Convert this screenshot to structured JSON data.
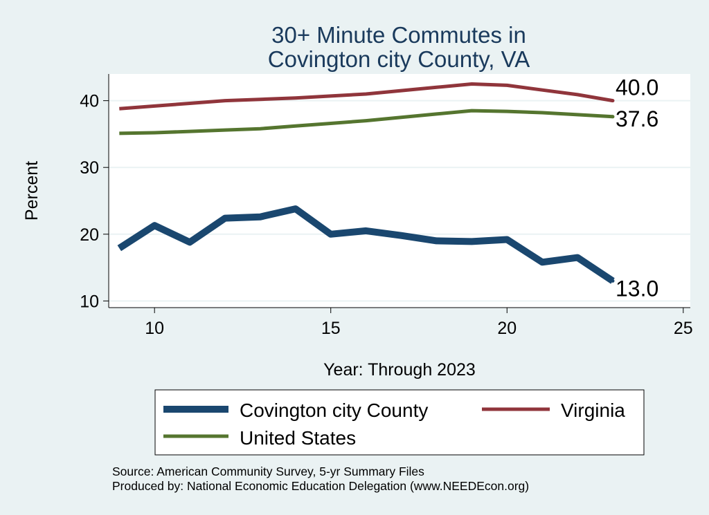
{
  "chart_data": {
    "type": "line",
    "title": [
      "30+ Minute Commutes in",
      "Covington city County, VA"
    ],
    "xlabel": "Year: Through 2023",
    "ylabel": "Percent",
    "xlim": [
      8.7,
      25.2
    ],
    "ylim": [
      9,
      44
    ],
    "xticks": [
      10,
      15,
      20,
      25
    ],
    "yticks": [
      10,
      20,
      30,
      40
    ],
    "grid": true,
    "x": [
      9,
      10,
      11,
      12,
      13,
      14,
      15,
      16,
      17,
      18,
      19,
      20,
      21,
      22,
      23
    ],
    "series": [
      {
        "name": "Covington city County",
        "color": "#1a476f",
        "values": [
          17.9,
          21.3,
          18.8,
          22.4,
          22.6,
          23.8,
          20.0,
          20.5,
          19.8,
          19.0,
          18.9,
          19.2,
          15.8,
          16.5,
          13.0
        ],
        "end_label": "13.0"
      },
      {
        "name": "Virginia",
        "color": "#90353b",
        "values": [
          38.8,
          39.2,
          39.6,
          40.0,
          40.2,
          40.4,
          40.7,
          41.0,
          41.5,
          42.0,
          42.5,
          42.3,
          41.6,
          40.9,
          40.0
        ],
        "end_label": "40.0"
      },
      {
        "name": "United States",
        "color": "#55752f",
        "values": [
          35.1,
          35.2,
          35.4,
          35.6,
          35.8,
          36.2,
          36.6,
          37.0,
          37.5,
          38.0,
          38.5,
          38.4,
          38.2,
          37.9,
          37.6
        ],
        "end_label": "37.6"
      }
    ],
    "legend": {
      "placement": "bottom",
      "entries": [
        "Covington city County",
        "Virginia",
        "United States"
      ]
    }
  },
  "source_note": {
    "line1": "Source: American Community Survey, 5-yr Summary Files",
    "line2": "Produced by: National Economic Education Delegation (www.NEEDEcon.org)"
  },
  "colors": {
    "background": "#eaf2f3",
    "plot_background": "#ffffff",
    "title": "#1a3a5c",
    "grid": "#eaf2f3"
  }
}
